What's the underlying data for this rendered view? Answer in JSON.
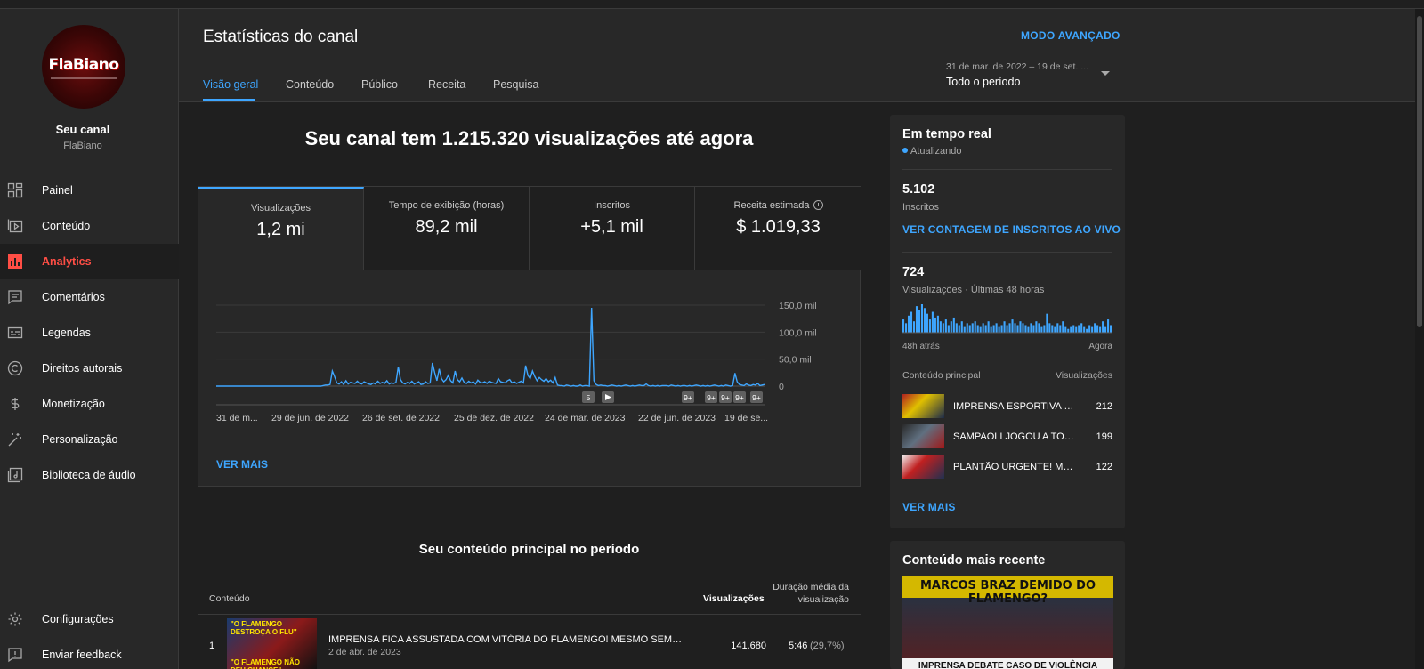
{
  "sidebar": {
    "avatar_logo": "FlaBiano",
    "channel_label": "Seu canal",
    "channel_name": "FlaBiano",
    "items": [
      {
        "label": "Painel",
        "icon": "dashboard-icon"
      },
      {
        "label": "Conteúdo",
        "icon": "content-icon"
      },
      {
        "label": "Analytics",
        "icon": "analytics-icon",
        "active": true
      },
      {
        "label": "Comentários",
        "icon": "comments-icon"
      },
      {
        "label": "Legendas",
        "icon": "subtitles-icon"
      },
      {
        "label": "Direitos autorais",
        "icon": "copyright-icon"
      },
      {
        "label": "Monetização",
        "icon": "dollar-icon"
      },
      {
        "label": "Personalização",
        "icon": "magic-wand-icon"
      },
      {
        "label": "Biblioteca de áudio",
        "icon": "audio-library-icon"
      }
    ],
    "bottom_items": [
      {
        "label": "Configurações",
        "icon": "gear-icon"
      },
      {
        "label": "Enviar feedback",
        "icon": "feedback-icon"
      }
    ]
  },
  "header": {
    "title": "Estatísticas do canal",
    "advanced_mode": "MODO AVANÇADO",
    "tabs": [
      "Visão geral",
      "Conteúdo",
      "Público",
      "Receita",
      "Pesquisa"
    ],
    "active_tab": "Visão geral",
    "period_range": "31 de mar. de 2022 – 19 de set. ...",
    "period_label": "Todo o período"
  },
  "overview": {
    "headline": "Seu canal tem 1.215.320 visualizações até agora",
    "metrics": [
      {
        "label": "Visualizações",
        "value": "1,2 mi"
      },
      {
        "label": "Tempo de exibição (horas)",
        "value": "89,2 mil"
      },
      {
        "label": "Inscritos",
        "value": "+5,1 mil"
      },
      {
        "label": "Receita estimada",
        "value": "$ 1.019,33"
      }
    ],
    "see_more": "VER MAIS"
  },
  "chart_data": {
    "type": "line",
    "series": [
      {
        "values": [
          0,
          0,
          0,
          0,
          0,
          0,
          0,
          0,
          0,
          0,
          0,
          0,
          0,
          0,
          0,
          0,
          0,
          0,
          0,
          0,
          0,
          0,
          0,
          0,
          0,
          0,
          0,
          0,
          0,
          0,
          0,
          0,
          0,
          0,
          0,
          0,
          0,
          0,
          0,
          0,
          0,
          0,
          0,
          0,
          0,
          0,
          0,
          1,
          2,
          2,
          3,
          28,
          18,
          6,
          4,
          8,
          3,
          10,
          4,
          7,
          6,
          5,
          9,
          5,
          4,
          8,
          6,
          4,
          3,
          6,
          4,
          9,
          5,
          7,
          5,
          10,
          4,
          6,
          5,
          7,
          36,
          12,
          6,
          4,
          7,
          5,
          9,
          4,
          6,
          8,
          3,
          4,
          8,
          5,
          6,
          43,
          25,
          10,
          32,
          14,
          8,
          12,
          20,
          10,
          6,
          28,
          12,
          8,
          15,
          7,
          5,
          9,
          6,
          8,
          4,
          11,
          7,
          6,
          8,
          5,
          9,
          7,
          6,
          5,
          14,
          8,
          7,
          6,
          10,
          12,
          6,
          8,
          5,
          7,
          9,
          6,
          38,
          20,
          14,
          28,
          18,
          10,
          16,
          12,
          9,
          14,
          8,
          11,
          6,
          16,
          2,
          1,
          1,
          0,
          2,
          1,
          0,
          1,
          0,
          0,
          2,
          0,
          1,
          1,
          0,
          145,
          10,
          3,
          1,
          2,
          1,
          1,
          0,
          1,
          2,
          1,
          0,
          1,
          0,
          1,
          2,
          1,
          0,
          1,
          0,
          1,
          2,
          1,
          1,
          4,
          1,
          0,
          1,
          0,
          1,
          0,
          1,
          1,
          1,
          0,
          2,
          1,
          0,
          1,
          0,
          1,
          1,
          0,
          1,
          0,
          1,
          2,
          1,
          0,
          1,
          0,
          1,
          0,
          1,
          2,
          1,
          0,
          1,
          0,
          2,
          1,
          0,
          1,
          24,
          8,
          3,
          2,
          1,
          4,
          2,
          1,
          3,
          2,
          5,
          1,
          2,
          3
        ]
      }
    ],
    "x_tick_labels": [
      "31 de m...",
      "29 de jun. de 2022",
      "26 de set. de 2022",
      "25 de dez. de 2022",
      "24 de mar. de 2023",
      "22 de jun. de 2023",
      "19 de se..."
    ],
    "y_tick_labels": [
      "150,0 mil",
      "100,0 mil",
      "50,0 mil",
      "0"
    ],
    "ylim": [
      0,
      150
    ],
    "markers": [
      "5",
      "play",
      "9+",
      "9+",
      "9+",
      "9+",
      "9+"
    ],
    "grid": true
  },
  "top_content": {
    "title": "Seu conteúdo principal no período",
    "col_content": "Conteúdo",
    "col_views": "Visualizações",
    "col_duration": "Duração média da visualização",
    "rows": [
      {
        "num": "1",
        "thumb_top": "\"O FLAMENGO DESTROÇA O FLU\"",
        "thumb_bottom": "\"O FLAMENGO NÃO DEU CHANCE\"",
        "title": "IMPRENSA FICA ASSUSTADA COM VITÓRIA DO FLAMENGO! MESMO SEM GABI...",
        "date": "2 de abr. de 2023",
        "views": "141.680",
        "duration": "5:46",
        "pct": "(29,7%)"
      }
    ]
  },
  "realtime": {
    "title": "Em tempo real",
    "status": "Atualizando",
    "subs_num": "5.102",
    "subs_label": "Inscritos",
    "subs_link": "VER CONTAGEM DE INSCRITOS AO VIVO",
    "views_num": "724",
    "views_label": "Visualizações · Últimas 48 horas",
    "bars": [
      14,
      10,
      18,
      22,
      12,
      28,
      24,
      30,
      26,
      20,
      14,
      22,
      16,
      18,
      12,
      10,
      14,
      8,
      12,
      16,
      10,
      8,
      12,
      6,
      10,
      8,
      10,
      12,
      8,
      6,
      10,
      8,
      12,
      6,
      8,
      10,
      6,
      8,
      12,
      8,
      10,
      14,
      10,
      8,
      12,
      10,
      8,
      6,
      10,
      8,
      12,
      10,
      6,
      8,
      20,
      10,
      8,
      6,
      10,
      8,
      12,
      6,
      4,
      6,
      8,
      6,
      8,
      10,
      6,
      4,
      8,
      6,
      10,
      8,
      6,
      12,
      6,
      14,
      8
    ],
    "axis_left": "48h atrás",
    "axis_right": "Agora",
    "th_left": "Conteúdo principal",
    "th_right": "Visualizações",
    "rows": [
      {
        "title": "IMPRENSA ESPORTIVA SO...",
        "value": "212"
      },
      {
        "title": "SAMPAOLI JOGOU A TOAL...",
        "value": "199"
      },
      {
        "title": "PLANTÃO URGENTE! MAR...",
        "value": "122"
      }
    ],
    "see_more": "VER MAIS"
  },
  "recent": {
    "title": "Conteúdo mais recente",
    "thumb_top": "MARCOS BRAZ DEMIDO DO FLAMENGO?",
    "thumb_bottom": "IMPRENSA DEBATE CASO DE VIOLÊNCIA"
  },
  "colors": {
    "accent": "#3ea6ff",
    "active_nav": "#ff4e45",
    "bg": "#282828",
    "bg_main": "#1f1f1f"
  }
}
